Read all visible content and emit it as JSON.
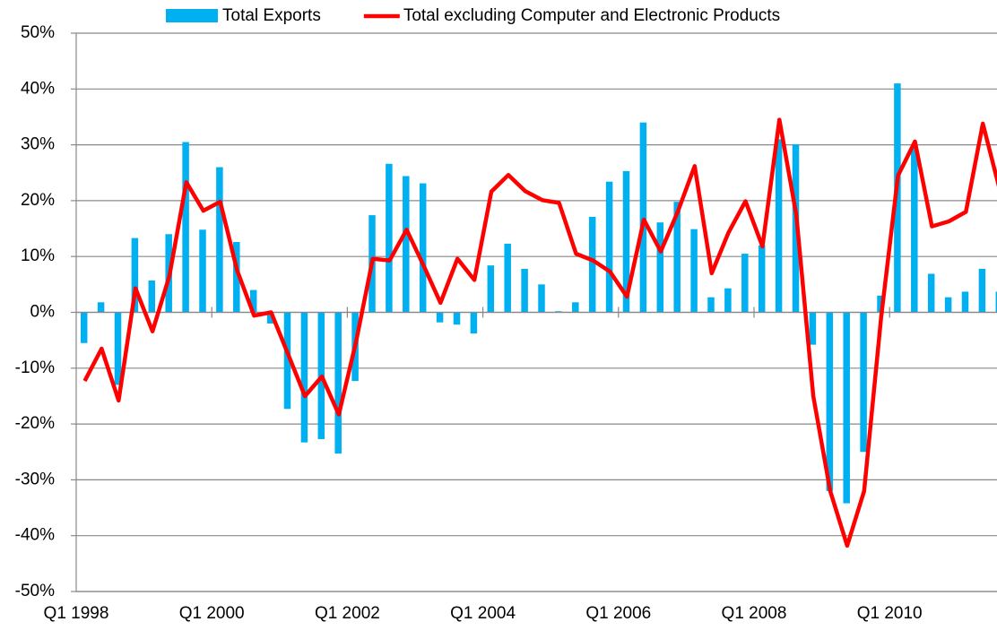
{
  "chart_data": {
    "type": "bar_line",
    "categories": [
      "Q1 1998",
      null,
      null,
      null,
      null,
      null,
      null,
      null,
      "Q1 2000",
      null,
      null,
      null,
      null,
      null,
      null,
      null,
      "Q1 2002",
      null,
      null,
      null,
      null,
      null,
      null,
      null,
      "Q1 2004",
      null,
      null,
      null,
      null,
      null,
      null,
      null,
      "Q1 2006",
      null,
      null,
      null,
      null,
      null,
      null,
      null,
      "Q1 2008",
      null,
      null,
      null,
      null,
      null,
      null,
      null,
      "Q1 2010",
      null,
      null,
      null,
      null,
      null,
      null
    ],
    "series": [
      {
        "name": "Total Exports",
        "type": "bar",
        "color": "#00b0f0",
        "values": [
          -5.5,
          1.8,
          -13,
          13.3,
          5.7,
          14,
          30.5,
          14.8,
          26,
          12.6,
          4,
          -2,
          -17.3,
          -23.3,
          -22.7,
          -25.3,
          -12.3,
          17.4,
          26.6,
          24.4,
          23.1,
          -1.8,
          -2.2,
          -3.8,
          8.4,
          12.3,
          7.8,
          5,
          0.2,
          1.8,
          17.1,
          23.4,
          25.3,
          34,
          16.1,
          19.8,
          14.9,
          2.7,
          4.3,
          10.5,
          12,
          31,
          30.1,
          -5.8,
          -32,
          -34.2,
          -25,
          3,
          41,
          30,
          6.9,
          2.7,
          3.7,
          7.8,
          3.7
        ]
      },
      {
        "name": "Total excluding Computer and Electronic Products",
        "type": "line",
        "color": "#ff0000",
        "values": [
          -12.3,
          -6.5,
          -15.8,
          4.3,
          -3.4,
          6.5,
          23.3,
          18.2,
          19.8,
          7.5,
          -0.6,
          0,
          -7.5,
          -15,
          -11.5,
          -18.3,
          -5.5,
          9.6,
          9.3,
          14.8,
          8.4,
          1.7,
          9.6,
          5.8,
          21.6,
          24.6,
          21.7,
          20.1,
          19.6,
          10.5,
          9.3,
          7.3,
          2.8,
          16.6,
          10.9,
          18,
          26.2,
          7,
          14.3,
          19.9,
          11.8,
          34.5,
          17.4,
          -15,
          -32,
          -41.8,
          -32,
          -1,
          24.5,
          30.6,
          15.4,
          16.3,
          18,
          33.8,
          22
        ]
      }
    ],
    "ylim": [
      -50,
      50
    ],
    "yticks": [
      {
        "value": -50,
        "label": "-50%"
      },
      {
        "value": -40,
        "label": "-40%"
      },
      {
        "value": -30,
        "label": "-30%"
      },
      {
        "value": -20,
        "label": "-20%"
      },
      {
        "value": -10,
        "label": "-10%"
      },
      {
        "value": 0,
        "label": "0%"
      },
      {
        "value": 10,
        "label": "10%"
      },
      {
        "value": 20,
        "label": "20%"
      },
      {
        "value": 30,
        "label": "30%"
      },
      {
        "value": 40,
        "label": "40%"
      },
      {
        "value": 50,
        "label": "50%"
      }
    ],
    "grid": true,
    "legend": "top"
  }
}
